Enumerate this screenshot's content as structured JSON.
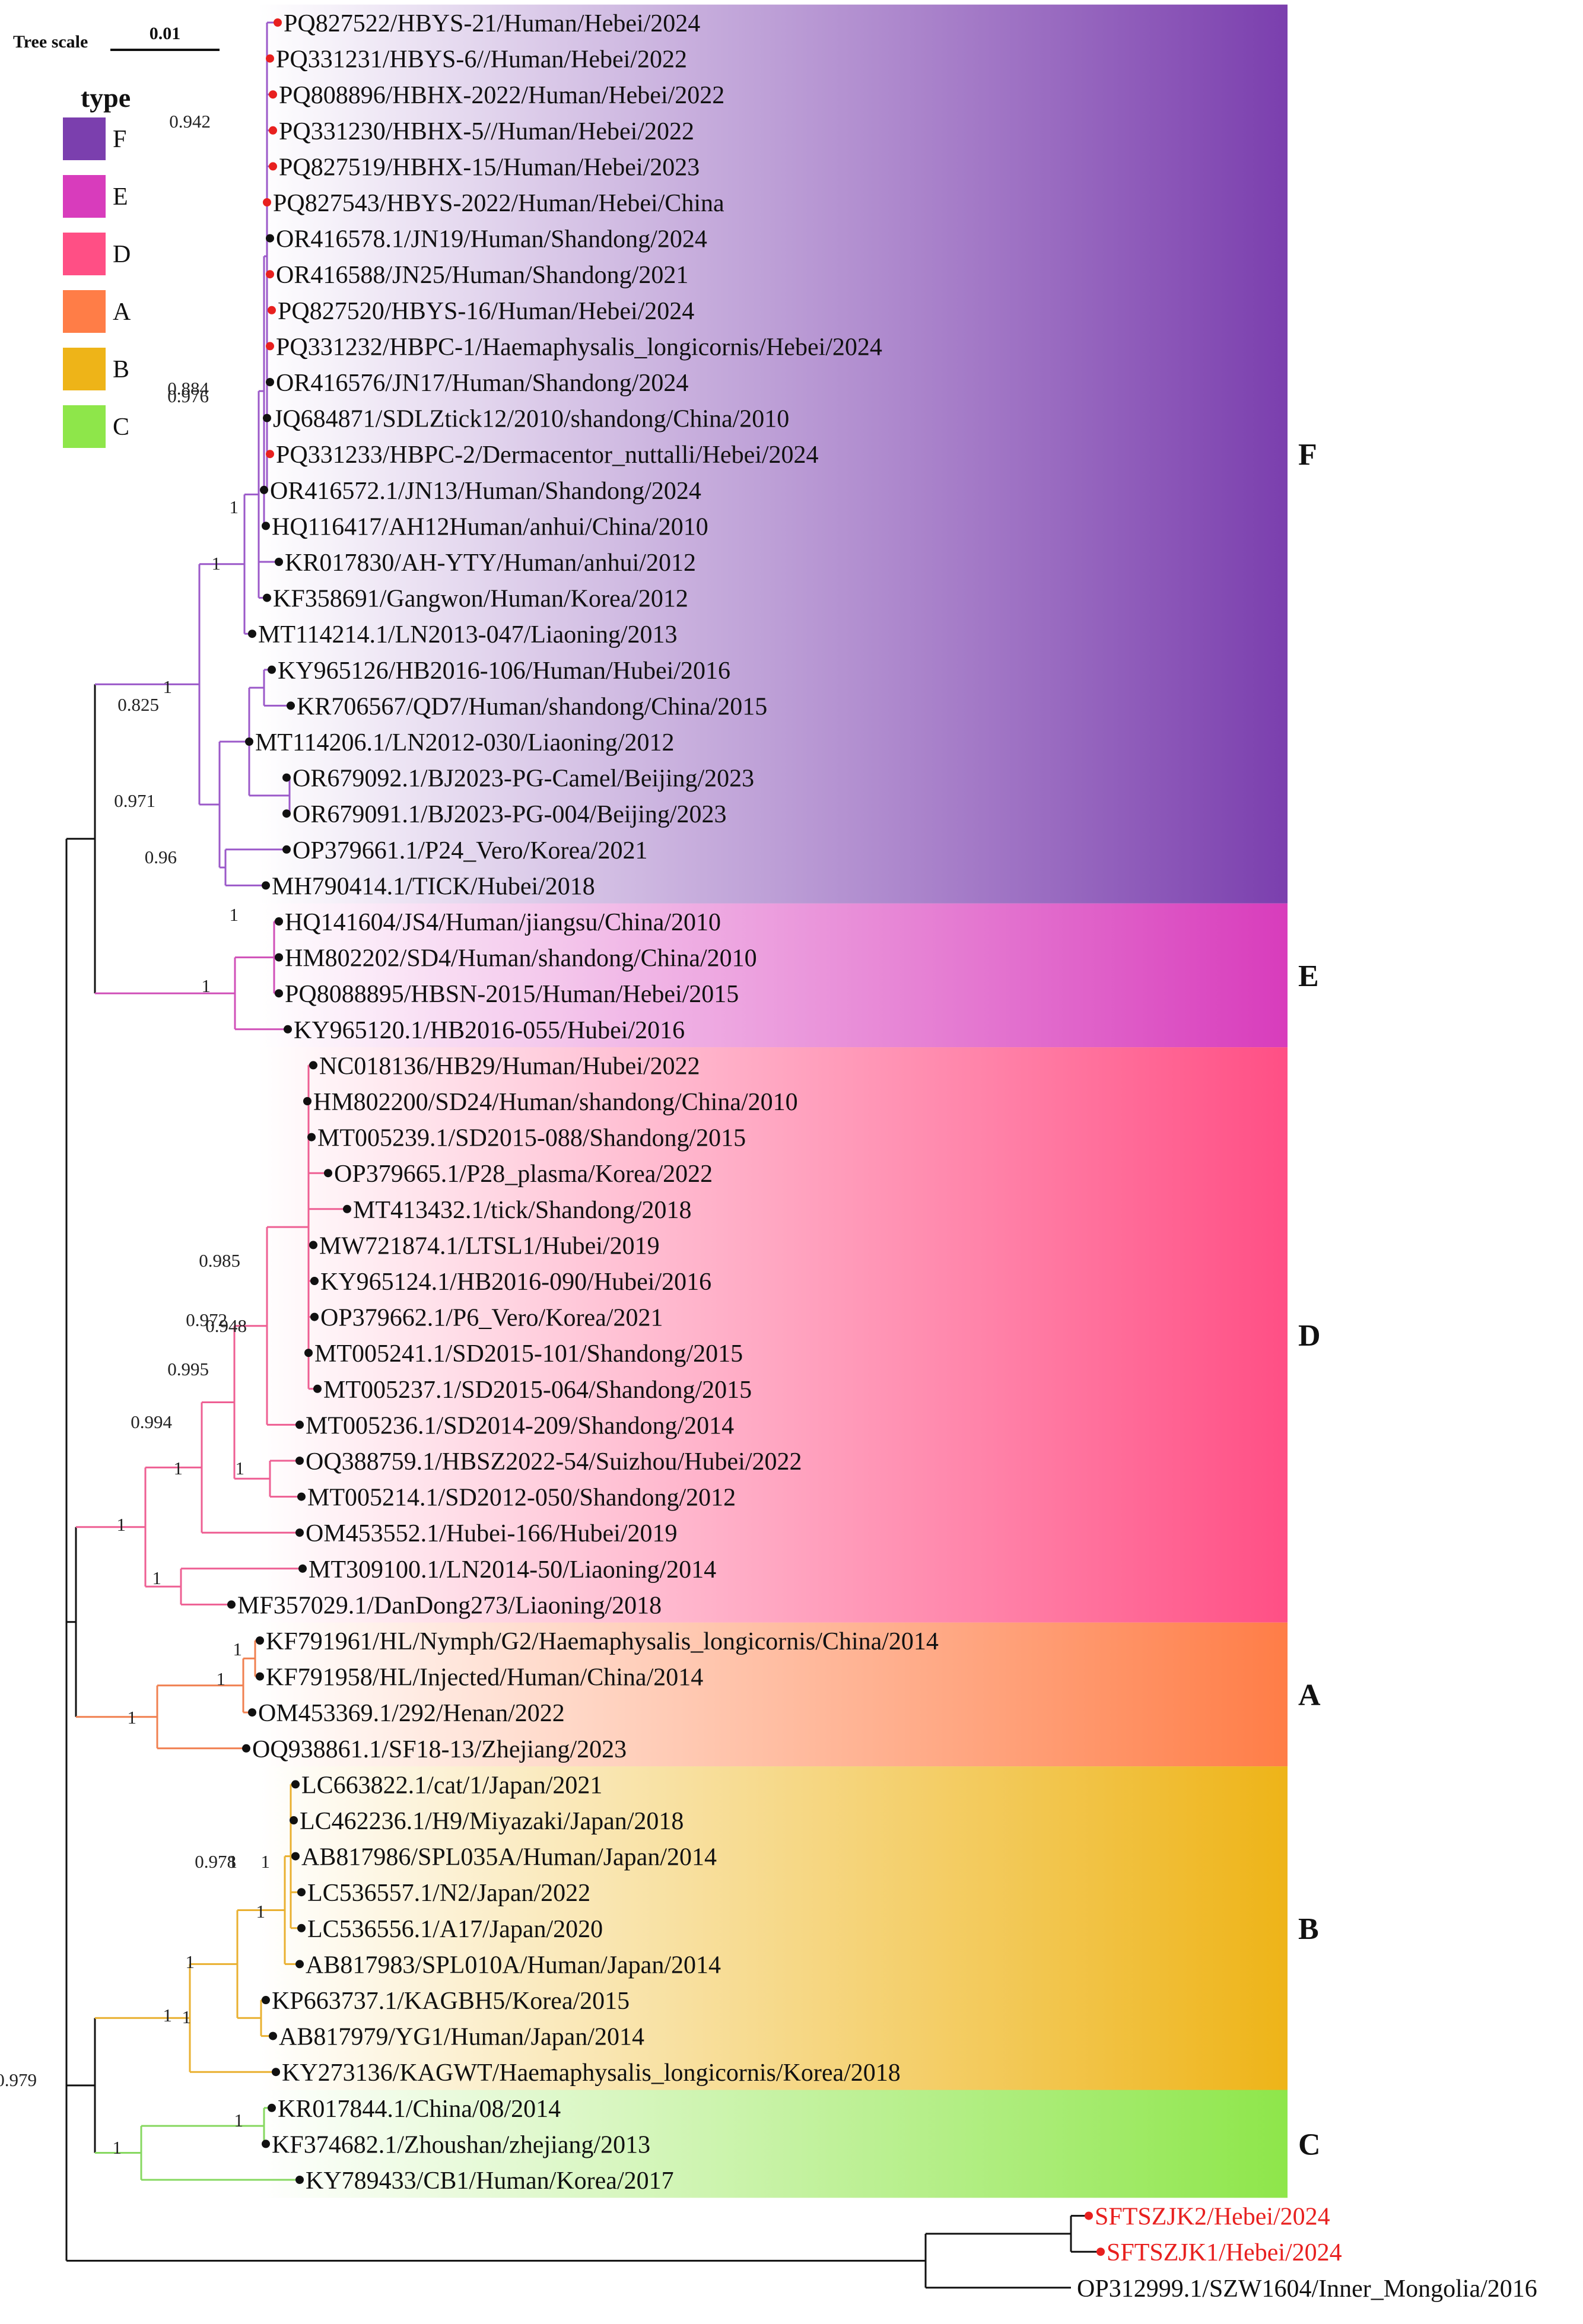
{
  "scale": {
    "title": "Tree scale",
    "value": "0.01"
  },
  "legend": {
    "title": "type",
    "items": [
      {
        "label": "F",
        "color": "#7b3fae"
      },
      {
        "label": "E",
        "color": "#d83cbc"
      },
      {
        "label": "D",
        "color": "#ff4f85"
      },
      {
        "label": "A",
        "color": "#ff7d47"
      },
      {
        "label": "B",
        "color": "#eeb418"
      },
      {
        "label": "C",
        "color": "#8ee64a"
      }
    ]
  },
  "clades": [
    {
      "name": "F",
      "color": "#7b3fae",
      "branch_color": "#9b59c9",
      "first": 0,
      "last": 24
    },
    {
      "name": "E",
      "color": "#d83cbc",
      "branch_color": "#d050b8",
      "first": 25,
      "last": 28
    },
    {
      "name": "D",
      "color": "#ff4f85",
      "branch_color": "#ee5f93",
      "first": 29,
      "last": 44
    },
    {
      "name": "A",
      "color": "#ff7d47",
      "branch_color": "#f08050",
      "first": 45,
      "last": 48
    },
    {
      "name": "B",
      "color": "#eeb418",
      "branch_color": "#e9b030",
      "first": 49,
      "last": 57
    },
    {
      "name": "C",
      "color": "#8ee64a",
      "branch_color": "#86d860",
      "first": 58,
      "last": 60
    }
  ],
  "leaves": [
    {
      "label": "PQ827522/HBYS-21/Human/Hebei/2024",
      "dot": "red"
    },
    {
      "label": "PQ331231/HBYS-6//Human/Hebei/2022",
      "dot": "red"
    },
    {
      "label": "PQ808896/HBHX-2022/Human/Hebei/2022",
      "dot": "red"
    },
    {
      "label": "PQ331230/HBHX-5//Human/Hebei/2022",
      "dot": "red"
    },
    {
      "label": "PQ827519/HBHX-15/Human/Hebei/2023",
      "dot": "red"
    },
    {
      "label": "PQ827543/HBYS-2022/Human/Hebei/China",
      "dot": "red"
    },
    {
      "label": "OR416578.1/JN19/Human/Shandong/2024",
      "dot": "black"
    },
    {
      "label": "OR416588/JN25/Human/Shandong/2021",
      "dot": "red"
    },
    {
      "label": "PQ827520/HBYS-16/Human/Hebei/2024",
      "dot": "red"
    },
    {
      "label": "PQ331232/HBPC-1/Haemaphysalis_longicornis/Hebei/2024",
      "dot": "red"
    },
    {
      "label": "OR416576/JN17/Human/Shandong/2024",
      "dot": "black"
    },
    {
      "label": "JQ684871/SDLZtick12/2010/shandong/China/2010",
      "dot": "black"
    },
    {
      "label": "PQ331233/HBPC-2/Dermacentor_nuttalli/Hebei/2024",
      "dot": "red"
    },
    {
      "label": "OR416572.1/JN13/Human/Shandong/2024",
      "dot": "black"
    },
    {
      "label": "HQ116417/AH12Human/anhui/China/2010",
      "dot": "black"
    },
    {
      "label": "KR017830/AH-YTY/Human/anhui/2012",
      "dot": "black"
    },
    {
      "label": "KF358691/Gangwon/Human/Korea/2012",
      "dot": "black"
    },
    {
      "label": "MT114214.1/LN2013-047/Liaoning/2013",
      "dot": "black"
    },
    {
      "label": "KY965126/HB2016-106/Human/Hubei/2016",
      "dot": "black"
    },
    {
      "label": "KR706567/QD7/Human/shandong/China/2015",
      "dot": "black"
    },
    {
      "label": "MT114206.1/LN2012-030/Liaoning/2012",
      "dot": "black"
    },
    {
      "label": "OR679092.1/BJ2023-PG-Camel/Beijing/2023",
      "dot": "black"
    },
    {
      "label": "OR679091.1/BJ2023-PG-004/Beijing/2023",
      "dot": "black"
    },
    {
      "label": "OP379661.1/P24_Vero/Korea/2021",
      "dot": "black"
    },
    {
      "label": "MH790414.1/TICK/Hubei/2018",
      "dot": "black"
    },
    {
      "label": "HQ141604/JS4/Human/jiangsu/China/2010",
      "dot": "black"
    },
    {
      "label": "HM802202/SD4/Human/shandong/China/2010",
      "dot": "black"
    },
    {
      "label": "PQ8088895/HBSN-2015/Human/Hebei/2015",
      "dot": "black"
    },
    {
      "label": "KY965120.1/HB2016-055/Hubei/2016",
      "dot": "black"
    },
    {
      "label": "NC018136/HB29/Human/Hubei/2022",
      "dot": "black"
    },
    {
      "label": "HM802200/SD24/Human/shandong/China/2010",
      "dot": "black"
    },
    {
      "label": "MT005239.1/SD2015-088/Shandong/2015",
      "dot": "black"
    },
    {
      "label": "OP379665.1/P28_plasma/Korea/2022",
      "dot": "black"
    },
    {
      "label": "MT413432.1/tick/Shandong/2018",
      "dot": "black"
    },
    {
      "label": "MW721874.1/LTSL1/Hubei/2019",
      "dot": "black"
    },
    {
      "label": "KY965124.1/HB2016-090/Hubei/2016",
      "dot": "black"
    },
    {
      "label": "OP379662.1/P6_Vero/Korea/2021",
      "dot": "black"
    },
    {
      "label": "MT005241.1/SD2015-101/Shandong/2015",
      "dot": "black"
    },
    {
      "label": "MT005237.1/SD2015-064/Shandong/2015",
      "dot": "black"
    },
    {
      "label": "MT005236.1/SD2014-209/Shandong/2014",
      "dot": "black"
    },
    {
      "label": "OQ388759.1/HBSZ2022-54/Suizhou/Hubei/2022",
      "dot": "black"
    },
    {
      "label": "MT005214.1/SD2012-050/Shandong/2012",
      "dot": "black"
    },
    {
      "label": "OM453552.1/Hubei-166/Hubei/2019",
      "dot": "black"
    },
    {
      "label": "MT309100.1/LN2014-50/Liaoning/2014",
      "dot": "black"
    },
    {
      "label": "MF357029.1/DanDong273/Liaoning/2018",
      "dot": "black"
    },
    {
      "label": "KF791961/HL/Nymph/G2/Haemaphysalis_longicornis/China/2014",
      "dot": "black"
    },
    {
      "label": "KF791958/HL/Injected/Human/China/2014",
      "dot": "black"
    },
    {
      "label": "OM453369.1/292/Henan/2022",
      "dot": "black"
    },
    {
      "label": "OQ938861.1/SF18-13/Zhejiang/2023",
      "dot": "black"
    },
    {
      "label": "LC663822.1/cat/1/Japan/2021",
      "dot": "black"
    },
    {
      "label": "LC462236.1/H9/Miyazaki/Japan/2018",
      "dot": "black"
    },
    {
      "label": "AB817986/SPL035A/Human/Japan/2014",
      "dot": "black"
    },
    {
      "label": "LC536557.1/N2/Japan/2022",
      "dot": "black"
    },
    {
      "label": "LC536556.1/A17/Japan/2020",
      "dot": "black"
    },
    {
      "label": "AB817983/SPL010A/Human/Japan/2014",
      "dot": "black"
    },
    {
      "label": "KP663737.1/KAGBH5/Korea/2015",
      "dot": "black"
    },
    {
      "label": "AB817979/YG1/Human/Japan/2014",
      "dot": "black"
    },
    {
      "label": "KY273136/KAGWT/Haemaphysalis_longicornis/Korea/2018",
      "dot": "black"
    },
    {
      "label": "KR017844.1/China/08/2014",
      "dot": "black"
    },
    {
      "label": "KF374682.1/Zhoushan/zhejiang/2013",
      "dot": "black"
    },
    {
      "label": "KY789433/CB1/Human/Korea/2017",
      "dot": "black"
    },
    {
      "label": "SFTSZJK2/Hebei/2024",
      "dot": "red",
      "text_color": "red"
    },
    {
      "label": "SFTSZJK1/Hebei/2024",
      "dot": "red",
      "text_color": "red"
    },
    {
      "label": "OP312999.1/SZW1604/Inner_Mongolia/2016",
      "dot": "none"
    }
  ],
  "support_values": [
    "0.942",
    "0.884",
    "0.976",
    "1",
    "1",
    "1",
    "0.825",
    "0.971",
    "0.96",
    "1",
    "1",
    "0.985",
    "0.972",
    "0.948",
    "0.995",
    "0.994",
    "1",
    "1",
    "1",
    "1",
    "1",
    "1",
    "1",
    "1",
    "1",
    "0.978",
    "1",
    "1",
    "1",
    "1",
    "0.979",
    "1",
    "1"
  ]
}
